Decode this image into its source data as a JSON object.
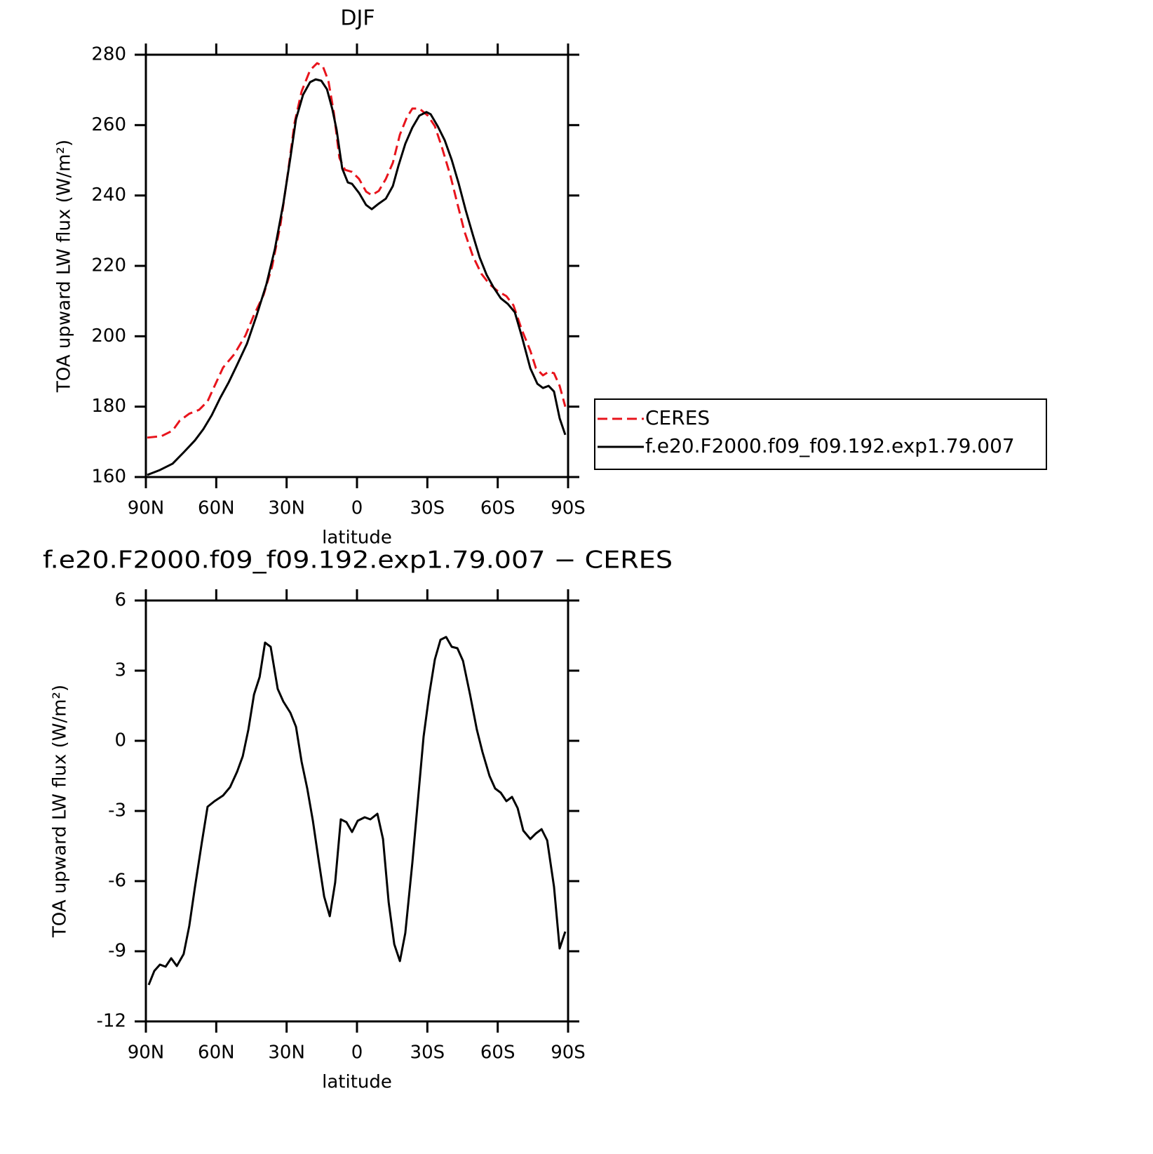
{
  "chart_data": [
    {
      "type": "line",
      "title": "DJF",
      "xlabel": "latitude",
      "ylabel": "TOA upward LW flux (W/m²)",
      "xlim": [
        90,
        -90
      ],
      "xticks": [
        {
          "value": 90,
          "label": "90N"
        },
        {
          "value": 60,
          "label": "60N"
        },
        {
          "value": 30,
          "label": "30N"
        },
        0,
        {
          "value": -30,
          "label": "30S"
        },
        {
          "value": -60,
          "label": "60S"
        },
        {
          "value": -90,
          "label": "90S"
        }
      ],
      "ylim": [
        160,
        280
      ],
      "yticks": [
        160,
        180,
        200,
        220,
        240,
        260,
        280
      ],
      "legend": "right",
      "series": [
        {
          "name": "CERES",
          "color": "#e8141c",
          "style": "dashed",
          "x": [
            89.4,
            83.4,
            78.6,
            75.6,
            71.5,
            67.3,
            63.7,
            60.7,
            57.1,
            52.3,
            47.5,
            44,
            39.8,
            36.2,
            32.6,
            29.6,
            26.6,
            23.6,
            20,
            17,
            14.6,
            12.2,
            9.9,
            7.5,
            5.1,
            2.1,
            -0.9,
            -3.9,
            -6.3,
            -9.3,
            -12.3,
            -15.3,
            -18.3,
            -21.2,
            -23.6,
            -26.6,
            -30.2,
            -33.2,
            -36.2,
            -39.8,
            -42.8,
            -45.8,
            -49.4,
            -53,
            -56.5,
            -60.1,
            -63.7,
            -66.7,
            -70.3,
            -73.9,
            -76.3,
            -79.3,
            -81.7,
            -84,
            -86.4,
            -88.8
          ],
          "values": [
            171.2,
            171.6,
            173.2,
            176,
            178,
            179.1,
            181.5,
            185.9,
            191.1,
            194.9,
            200.3,
            205.9,
            211.8,
            219.8,
            231.8,
            245.7,
            260.7,
            269.6,
            275.6,
            277.6,
            276.8,
            272.6,
            263.7,
            250.7,
            247.3,
            246.7,
            244.7,
            241.1,
            240.1,
            241.3,
            244.7,
            249.3,
            257.3,
            262.1,
            264.7,
            264.7,
            262.7,
            259.7,
            253.7,
            245.7,
            237.7,
            229.8,
            222.8,
            217.8,
            214.8,
            212.8,
            211.4,
            208.8,
            201.8,
            195.9,
            190.9,
            188.9,
            189.9,
            189.5,
            185.9,
            180
          ]
        },
        {
          "name": "f.e20.F2000.f09_f09.192.exp1.79.007",
          "color": "#000000",
          "style": "solid",
          "x": [
            89.4,
            84,
            78.6,
            73.9,
            69.1,
            65.5,
            61.9,
            58.3,
            54.7,
            51.1,
            46.9,
            42.8,
            38.6,
            35,
            31.4,
            28.4,
            26,
            23,
            20,
            17.6,
            15.2,
            12.8,
            10.5,
            8.7,
            6.3,
            3.9,
            2.1,
            -0.9,
            -3.9,
            -6.3,
            -9.3,
            -12.3,
            -15.3,
            -17.7,
            -20.6,
            -23.6,
            -26.6,
            -29.6,
            -31.4,
            -34.4,
            -37.4,
            -40.4,
            -43.4,
            -46.4,
            -49.4,
            -52.3,
            -55.3,
            -58.3,
            -61.3,
            -64.3,
            -67.3,
            -70.3,
            -73.9,
            -76.9,
            -79.3,
            -81.7,
            -84,
            -86.4,
            -88.8
          ],
          "values": [
            160.6,
            162,
            163.8,
            167,
            170.4,
            173.6,
            177.6,
            182.5,
            186.9,
            191.9,
            197.9,
            205.9,
            214.8,
            224.8,
            237.7,
            250.7,
            261.7,
            268.6,
            272.2,
            273,
            272.6,
            270.2,
            264.5,
            258.7,
            247.7,
            243.7,
            243.3,
            240.7,
            237.3,
            236.1,
            237.7,
            239.1,
            242.7,
            248.5,
            254.7,
            259.3,
            262.7,
            263.7,
            263.1,
            259.7,
            255.7,
            250.1,
            243.3,
            235.7,
            228.8,
            222.4,
            217.4,
            213.8,
            210.8,
            209.2,
            206.8,
            199.9,
            190.9,
            186.5,
            185.3,
            185.9,
            184.3,
            176.7,
            172
          ]
        }
      ]
    },
    {
      "type": "line",
      "title": "f.e20.F2000.f09_f09.192.exp1.79.007 − CERES",
      "xlabel": "latitude",
      "ylabel": "TOA upward LW flux (W/m²)",
      "xlim": [
        90,
        -90
      ],
      "xticks": [
        {
          "value": 90,
          "label": "90N"
        },
        {
          "value": 60,
          "label": "60N"
        },
        {
          "value": 30,
          "label": "30N"
        },
        0,
        {
          "value": -30,
          "label": "30S"
        },
        {
          "value": -60,
          "label": "60S"
        },
        {
          "value": -90,
          "label": "90S"
        }
      ],
      "ylim": [
        -12,
        6
      ],
      "yticks": [
        -12,
        -9,
        -6,
        -3,
        0,
        3,
        6
      ],
      "series": [
        {
          "color": "#000000",
          "style": "solid",
          "x": [
            88.8,
            86.4,
            84,
            81.6,
            79.2,
            76.8,
            73.9,
            71.5,
            69.1,
            66.1,
            63.7,
            60.7,
            57.1,
            54.1,
            51.1,
            48.7,
            46.3,
            43.9,
            41.5,
            39.2,
            36.8,
            33.8,
            31.4,
            28.4,
            26,
            23.6,
            21.2,
            18.8,
            16.4,
            14,
            11.6,
            9.3,
            6.9,
            4.5,
            2.1,
            -0.3,
            -3.3,
            -5.7,
            -8.7,
            -11.1,
            -13.5,
            -15.9,
            -18.3,
            -20.6,
            -23.6,
            -26,
            -28.4,
            -30.8,
            -33.2,
            -35.6,
            -38,
            -40.4,
            -42.8,
            -45.2,
            -48.2,
            -51.1,
            -53.5,
            -56.5,
            -58.9,
            -61.3,
            -63.7,
            -66.1,
            -68.5,
            -70.9,
            -73.9,
            -76.3,
            -78.7,
            -81.1,
            -84,
            -86.4,
            -88.8
          ],
          "values": [
            -10.44,
            -9.84,
            -9.57,
            -9.66,
            -9.3,
            -9.63,
            -9.12,
            -7.92,
            -6.27,
            -4.32,
            -2.82,
            -2.58,
            -2.34,
            -1.98,
            -1.32,
            -0.66,
            0.48,
            1.98,
            2.73,
            4.2,
            4.02,
            2.22,
            1.68,
            1.2,
            0.6,
            -0.9,
            -2.04,
            -3.42,
            -5.07,
            -6.66,
            -7.5,
            -6.06,
            -3.36,
            -3.48,
            -3.9,
            -3.42,
            -3.27,
            -3.36,
            -3.12,
            -4.2,
            -6.9,
            -8.7,
            -9.42,
            -8.22,
            -5.22,
            -2.52,
            0.18,
            1.98,
            3.48,
            4.32,
            4.44,
            4.02,
            3.96,
            3.42,
            1.98,
            0.48,
            -0.48,
            -1.5,
            -2.04,
            -2.22,
            -2.58,
            -2.4,
            -2.88,
            -3.84,
            -4.2,
            -3.96,
            -3.78,
            -4.26,
            -6.24,
            -8.88,
            -8.16
          ]
        }
      ]
    }
  ]
}
